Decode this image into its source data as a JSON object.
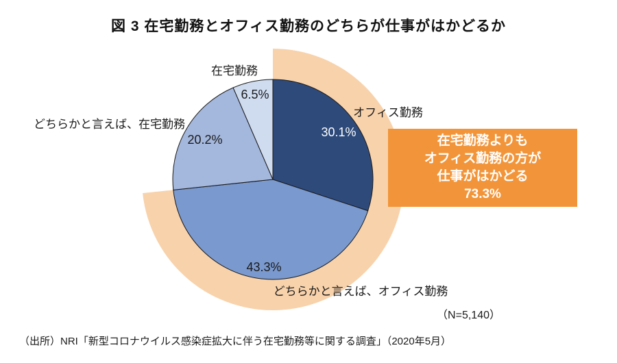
{
  "title": "図 3 在宅勤務とオフィス勤務のどちらが仕事がはかどるか",
  "chart_data": {
    "type": "pie",
    "start_angle_deg": 0,
    "direction": "clockwise",
    "slices": [
      {
        "label": "オフィス勤務",
        "value": 30.1,
        "display": "30.1%",
        "color": "#2E4A7B",
        "label_color": "#FFFFFF"
      },
      {
        "label": "どちらかと言えば、オフィス勤務",
        "value": 43.3,
        "display": "43.3%",
        "color": "#7A99CE",
        "label_color": "#1A1A1A"
      },
      {
        "label": "どちらかと言えば、在宅勤務",
        "value": 20.2,
        "display": "20.2%",
        "color": "#A4B7DD",
        "label_color": "#1A1A1A"
      },
      {
        "label": "在宅勤務",
        "value": 6.5,
        "display": "6.5%",
        "color": "#CFDCF0",
        "label_color": "#1A1A1A"
      }
    ],
    "highlight_band": {
      "covers_slices": [
        0,
        1
      ],
      "total_display": "73.3%",
      "color": "#F8D2AB"
    },
    "slice_border_color": "#1a1a1a",
    "sample_size": "（N=5,140）"
  },
  "callout": {
    "lines": [
      "在宅勤務よりも",
      "オフィス勤務の方が",
      "仕事がはかどる",
      "73.3%"
    ],
    "bg_color": "#F2953A",
    "text_color": "#FFFFFF"
  },
  "source": "（出所）NRI「新型コロナウイルス感染症拡大に伴う在宅勤務等に関する調査」（2020年5月）"
}
